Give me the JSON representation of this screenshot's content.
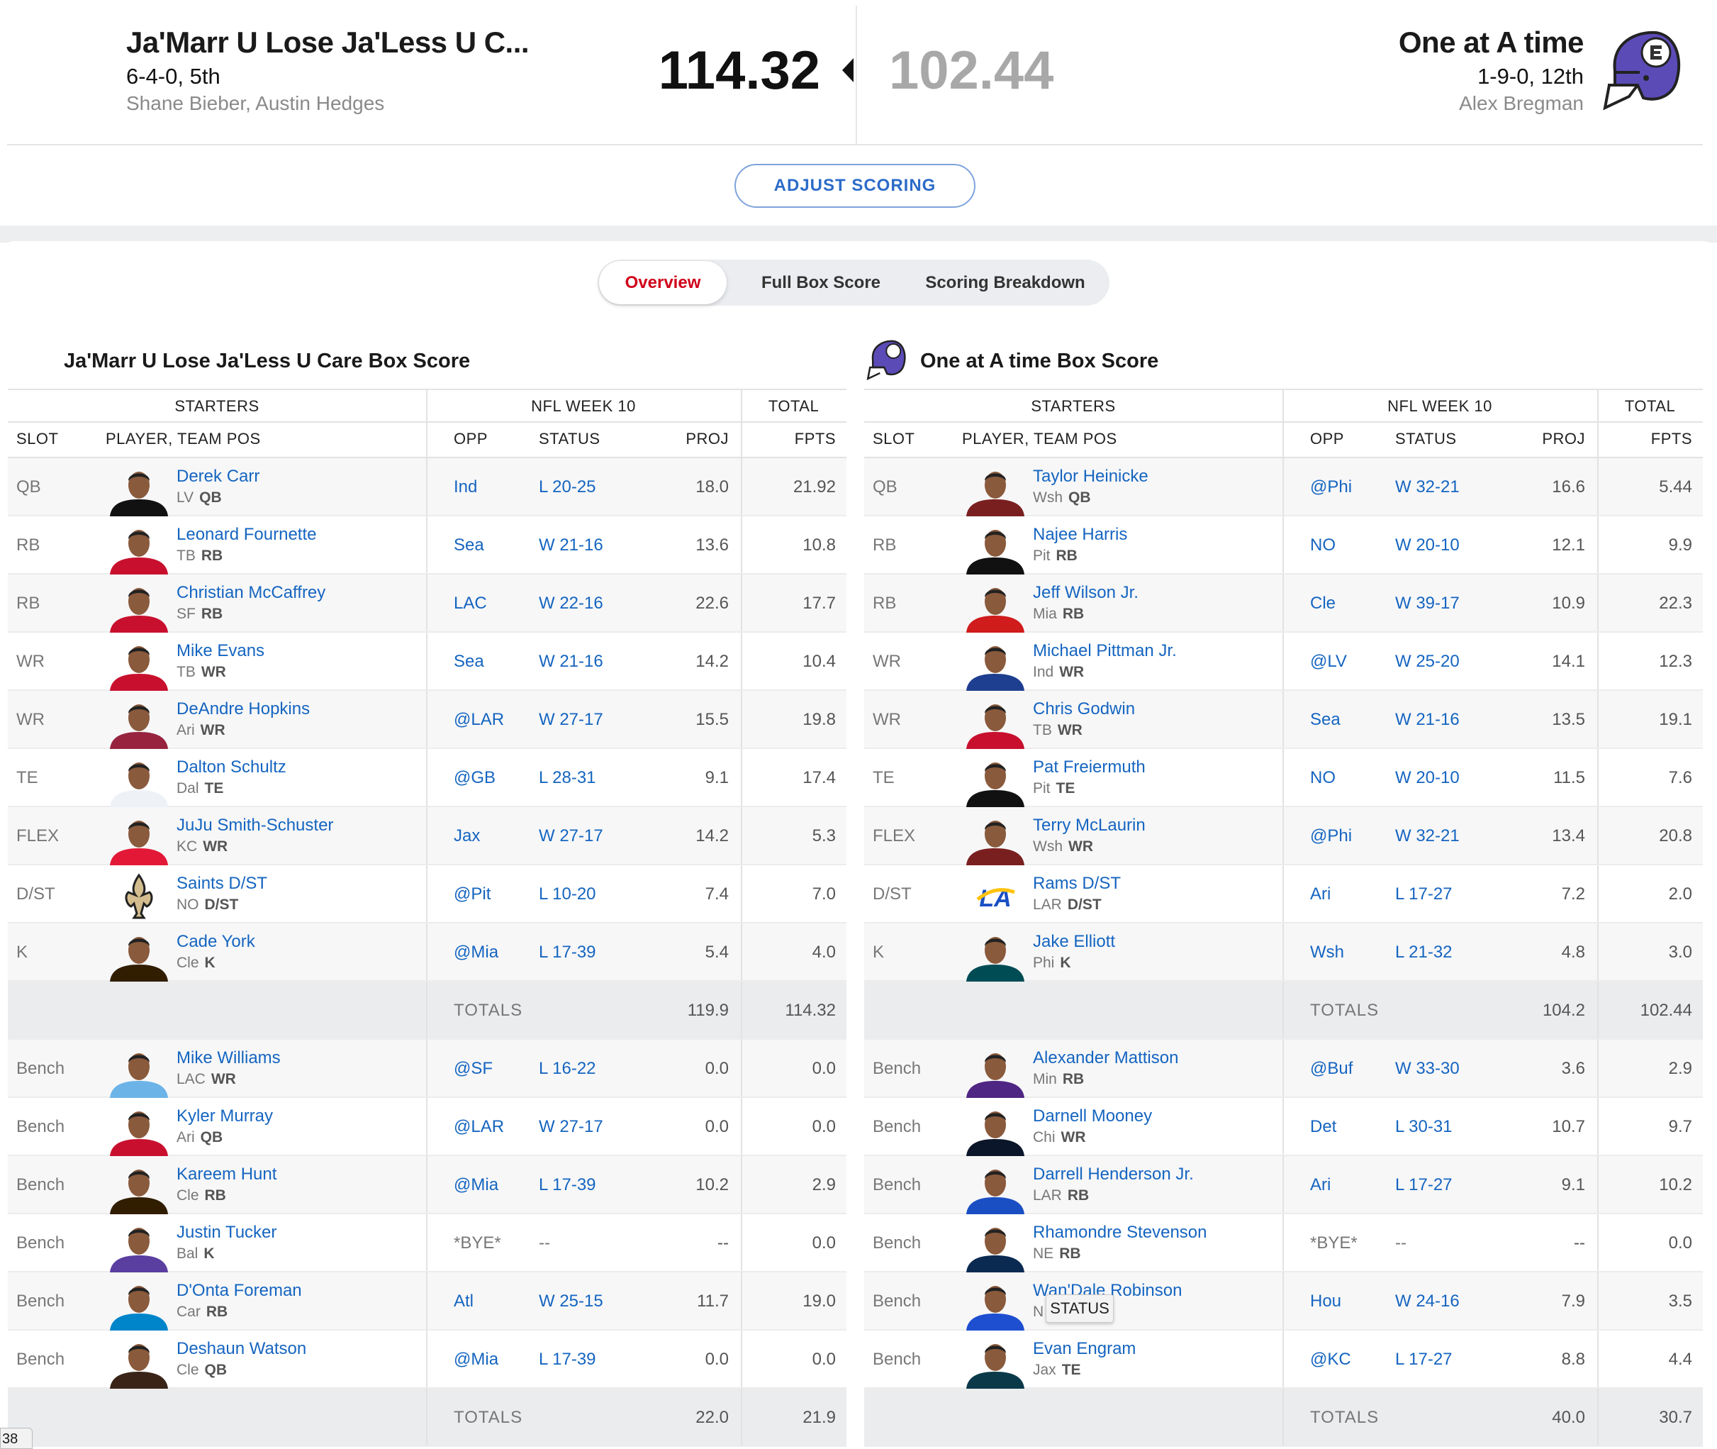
{
  "header": {
    "home": {
      "name": "Ja'Marr U Lose Ja'Less U C...",
      "record": "6-4-0, 5th",
      "owners": "Shane Bieber, Austin Hedges",
      "score": "114.32"
    },
    "away": {
      "name": "One at A time",
      "record": "1-9-0, 12th",
      "owners": "Alex Bregman",
      "score": "102.44"
    },
    "adjust_label": "ADJUST SCORING",
    "helmet_color": "#5b4bb7"
  },
  "tabs": [
    "Overview",
    "Full Box Score",
    "Scoring Breakdown"
  ],
  "columns": {
    "starters": "STARTERS",
    "week": "NFL WEEK 10",
    "total": "TOTAL",
    "slot": "SLOT",
    "player": "PLAYER, TEAM POS",
    "opp": "OPP",
    "status": "STATUS",
    "proj": "PROJ",
    "fpts": "FPTS",
    "totals": "TOTALS"
  },
  "tooltip": "STATUS",
  "page_tab": "38",
  "boxes": [
    {
      "title": "Ja'Marr U Lose Ja'Less U Care Box Score",
      "starters": [
        {
          "slot": "QB",
          "name": "Derek Carr",
          "team": "LV",
          "pos": "QB",
          "opp": "Ind",
          "status": "L 20-25",
          "proj": "18.0",
          "fpts": "21.92",
          "jersey": "#111111"
        },
        {
          "slot": "RB",
          "name": "Leonard Fournette",
          "team": "TB",
          "pos": "RB",
          "opp": "Sea",
          "status": "W 21-16",
          "proj": "13.6",
          "fpts": "10.8",
          "jersey": "#c8102e"
        },
        {
          "slot": "RB",
          "name": "Christian McCaffrey",
          "team": "SF",
          "pos": "RB",
          "opp": "LAC",
          "status": "W 22-16",
          "proj": "22.6",
          "fpts": "17.7",
          "jersey": "#c8102e"
        },
        {
          "slot": "WR",
          "name": "Mike Evans",
          "team": "TB",
          "pos": "WR",
          "opp": "Sea",
          "status": "W 21-16",
          "proj": "14.2",
          "fpts": "10.4",
          "jersey": "#c8102e"
        },
        {
          "slot": "WR",
          "name": "DeAndre Hopkins",
          "team": "Ari",
          "pos": "WR",
          "opp": "@LAR",
          "status": "W 27-17",
          "proj": "15.5",
          "fpts": "19.8",
          "jersey": "#97233f"
        },
        {
          "slot": "TE",
          "name": "Dalton Schultz",
          "team": "Dal",
          "pos": "TE",
          "opp": "@GB",
          "status": "L 28-31",
          "proj": "9.1",
          "fpts": "17.4",
          "jersey": "#eef2f7"
        },
        {
          "slot": "FLEX",
          "name": "JuJu Smith-Schuster",
          "team": "KC",
          "pos": "WR",
          "opp": "Jax",
          "status": "W 27-17",
          "proj": "14.2",
          "fpts": "5.3",
          "jersey": "#e31837"
        },
        {
          "slot": "D/ST",
          "name": "Saints D/ST",
          "team": "NO",
          "pos": "D/ST",
          "opp": "@Pit",
          "status": "L 10-20",
          "proj": "7.4",
          "fpts": "7.0",
          "jersey": "logo-saints"
        },
        {
          "slot": "K",
          "name": "Cade York",
          "team": "Cle",
          "pos": "K",
          "opp": "@Mia",
          "status": "L 17-39",
          "proj": "5.4",
          "fpts": "4.0",
          "jersey": "#311d00"
        }
      ],
      "starter_totals": {
        "proj": "119.9",
        "fpts": "114.32"
      },
      "bench": [
        {
          "slot": "Bench",
          "name": "Mike Williams",
          "team": "LAC",
          "pos": "WR",
          "opp": "@SF",
          "status": "L 16-22",
          "proj": "0.0",
          "fpts": "0.0",
          "jersey": "#6cb4e8"
        },
        {
          "slot": "Bench",
          "name": "Kyler Murray",
          "team": "Ari",
          "pos": "QB",
          "opp": "@LAR",
          "status": "W 27-17",
          "proj": "0.0",
          "fpts": "0.0",
          "jersey": "#c8102e"
        },
        {
          "slot": "Bench",
          "name": "Kareem Hunt",
          "team": "Cle",
          "pos": "RB",
          "opp": "@Mia",
          "status": "L 17-39",
          "proj": "10.2",
          "fpts": "2.9",
          "jersey": "#311d00"
        },
        {
          "slot": "Bench",
          "name": "Justin Tucker",
          "team": "Bal",
          "pos": "K",
          "opp": "*BYE*",
          "status": "--",
          "proj": "--",
          "fpts": "0.0",
          "jersey": "#5a3ea0"
        },
        {
          "slot": "Bench",
          "name": "D'Onta Foreman",
          "team": "Car",
          "pos": "RB",
          "opp": "Atl",
          "status": "W 25-15",
          "proj": "11.7",
          "fpts": "19.0",
          "jersey": "#0085ca"
        },
        {
          "slot": "Bench",
          "name": "Deshaun Watson",
          "team": "Cle",
          "pos": "QB",
          "opp": "@Mia",
          "status": "L 17-39",
          "proj": "0.0",
          "fpts": "0.0",
          "jersey": "#3a2418"
        }
      ],
      "bench_totals": {
        "proj": "22.0",
        "fpts": "21.9"
      }
    },
    {
      "title": "One at A time Box Score",
      "starters": [
        {
          "slot": "QB",
          "name": "Taylor Heinicke",
          "team": "Wsh",
          "pos": "QB",
          "opp": "@Phi",
          "status": "W 32-21",
          "proj": "16.6",
          "fpts": "5.44",
          "jersey": "#7a1f1f"
        },
        {
          "slot": "RB",
          "name": "Najee Harris",
          "team": "Pit",
          "pos": "RB",
          "opp": "NO",
          "status": "W 20-10",
          "proj": "12.1",
          "fpts": "9.9",
          "jersey": "#111111"
        },
        {
          "slot": "RB",
          "name": "Jeff Wilson Jr.",
          "team": "Mia",
          "pos": "RB",
          "opp": "Cle",
          "status": "W 39-17",
          "proj": "10.9",
          "fpts": "22.3",
          "jersey": "#d01c1c"
        },
        {
          "slot": "WR",
          "name": "Michael Pittman Jr.",
          "team": "Ind",
          "pos": "WR",
          "opp": "@LV",
          "status": "W 25-20",
          "proj": "14.1",
          "fpts": "12.3",
          "jersey": "#1e3f8f"
        },
        {
          "slot": "WR",
          "name": "Chris Godwin",
          "team": "TB",
          "pos": "WR",
          "opp": "Sea",
          "status": "W 21-16",
          "proj": "13.5",
          "fpts": "19.1",
          "jersey": "#c8102e"
        },
        {
          "slot": "TE",
          "name": "Pat Freiermuth",
          "team": "Pit",
          "pos": "TE",
          "opp": "NO",
          "status": "W 20-10",
          "proj": "11.5",
          "fpts": "7.6",
          "jersey": "#111111"
        },
        {
          "slot": "FLEX",
          "name": "Terry McLaurin",
          "team": "Wsh",
          "pos": "WR",
          "opp": "@Phi",
          "status": "W 32-21",
          "proj": "13.4",
          "fpts": "20.8",
          "jersey": "#7a1f1f"
        },
        {
          "slot": "D/ST",
          "name": "Rams D/ST",
          "team": "LAR",
          "pos": "D/ST",
          "opp": "Ari",
          "status": "L 17-27",
          "proj": "7.2",
          "fpts": "2.0",
          "jersey": "logo-rams"
        },
        {
          "slot": "K",
          "name": "Jake Elliott",
          "team": "Phi",
          "pos": "K",
          "opp": "Wsh",
          "status": "L 21-32",
          "proj": "4.8",
          "fpts": "3.0",
          "jersey": "#004c54"
        }
      ],
      "starter_totals": {
        "proj": "104.2",
        "fpts": "102.44"
      },
      "bench": [
        {
          "slot": "Bench",
          "name": "Alexander Mattison",
          "team": "Min",
          "pos": "RB",
          "opp": "@Buf",
          "status": "W 33-30",
          "proj": "3.6",
          "fpts": "2.9",
          "jersey": "#4f2683"
        },
        {
          "slot": "Bench",
          "name": "Darnell Mooney",
          "team": "Chi",
          "pos": "WR",
          "opp": "Det",
          "status": "L 30-31",
          "proj": "10.7",
          "fpts": "9.7",
          "jersey": "#0b162a"
        },
        {
          "slot": "Bench",
          "name": "Darrell Henderson Jr.",
          "team": "LAR",
          "pos": "RB",
          "opp": "Ari",
          "status": "L 17-27",
          "proj": "9.1",
          "fpts": "10.2",
          "jersey": "#1a4fc4"
        },
        {
          "slot": "Bench",
          "name": "Rhamondre Stevenson",
          "team": "NE",
          "pos": "RB",
          "opp": "*BYE*",
          "status": "--",
          "proj": "--",
          "fpts": "0.0",
          "jersey": "#0b2a52"
        },
        {
          "slot": "Bench",
          "name": "Wan'Dale Robinson",
          "team": "N",
          "pos": "",
          "opp": "Hou",
          "status": "W 24-16",
          "proj": "7.9",
          "fpts": "3.5",
          "jersey": "#1e4fd0"
        },
        {
          "slot": "Bench",
          "name": "Evan Engram",
          "team": "Jax",
          "pos": "TE",
          "opp": "@KC",
          "status": "L 17-27",
          "proj": "8.8",
          "fpts": "4.4",
          "jersey": "#0a3a4a"
        }
      ],
      "bench_totals": {
        "proj": "40.0",
        "fpts": "30.7"
      }
    }
  ]
}
